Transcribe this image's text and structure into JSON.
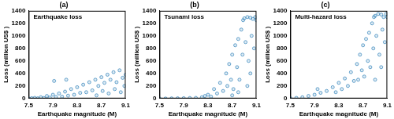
{
  "chart_data": [
    {
      "type": "scatter",
      "title": "(a)",
      "subtitle": "Earthquake loss",
      "x_label": "Earthquake magnitude (M)",
      "y_label": "Loss (million US$ )",
      "color": "#1f77b4",
      "marker": "circle",
      "grid": false,
      "xlim": [
        7.5,
        9.1
      ],
      "xticks": [
        7.5,
        7.9,
        8.3,
        8.7,
        9.1
      ],
      "ylim": [
        0,
        1400
      ],
      "yticks": [
        0,
        200,
        400,
        600,
        800,
        1000,
        1200,
        1400
      ],
      "x": [
        7.5,
        7.55,
        7.6,
        7.65,
        7.7,
        7.75,
        7.8,
        7.85,
        7.9,
        7.92,
        7.95,
        8.0,
        8.05,
        8.1,
        8.12,
        8.15,
        8.2,
        8.25,
        8.3,
        8.35,
        8.4,
        8.45,
        8.5,
        8.55,
        8.6,
        8.62,
        8.65,
        8.7,
        8.72,
        8.75,
        8.8,
        8.82,
        8.85,
        8.9,
        8.92,
        8.95,
        9.0,
        9.02,
        9.05,
        9.08,
        9.1
      ],
      "values": [
        0,
        5,
        10,
        3,
        20,
        8,
        40,
        15,
        60,
        280,
        25,
        80,
        30,
        110,
        300,
        45,
        150,
        60,
        180,
        90,
        220,
        100,
        260,
        130,
        300,
        50,
        200,
        340,
        120,
        250,
        380,
        80,
        300,
        420,
        150,
        260,
        450,
        100,
        330,
        200,
        380
      ]
    },
    {
      "type": "scatter",
      "title": "(b)",
      "subtitle": "Tsunami loss",
      "x_label": "Earthquake magnitude (M)",
      "y_label": "Loss (million US$ )",
      "color": "#1f77b4",
      "marker": "circle",
      "grid": false,
      "xlim": [
        7.5,
        9.1
      ],
      "xticks": [
        7.5,
        7.9,
        8.3,
        8.7,
        9.1
      ],
      "ylim": [
        0,
        1400
      ],
      "yticks": [
        0,
        200,
        400,
        600,
        800,
        1000,
        1200,
        1400
      ],
      "x": [
        7.5,
        7.6,
        7.7,
        7.8,
        7.9,
        8.0,
        8.1,
        8.2,
        8.25,
        8.3,
        8.35,
        8.4,
        8.45,
        8.5,
        8.55,
        8.6,
        8.62,
        8.65,
        8.68,
        8.7,
        8.7,
        8.72,
        8.75,
        8.78,
        8.8,
        8.8,
        8.82,
        8.85,
        8.87,
        8.88,
        8.9,
        8.92,
        8.95,
        8.95,
        8.97,
        9.0,
        9.0,
        9.02,
        9.04,
        9.06,
        9.08,
        9.1
      ],
      "values": [
        0,
        0,
        2,
        3,
        5,
        8,
        10,
        20,
        40,
        60,
        30,
        150,
        80,
        250,
        120,
        400,
        200,
        550,
        300,
        700,
        50,
        150,
        850,
        500,
        950,
        100,
        300,
        1100,
        700,
        1250,
        1280,
        900,
        1300,
        200,
        600,
        1290,
        400,
        1000,
        1270,
        800,
        1300,
        1250
      ]
    },
    {
      "type": "scatter",
      "title": "(c)",
      "subtitle": "Multi-hazard loss",
      "x_label": "Earthquake magnitude (M)",
      "y_label": "Loss (million US$ )",
      "color": "#1f77b4",
      "marker": "circle",
      "grid": false,
      "xlim": [
        7.5,
        9.1
      ],
      "xticks": [
        7.5,
        7.9,
        8.3,
        8.7,
        9.1
      ],
      "ylim": [
        0,
        1400
      ],
      "yticks": [
        0,
        200,
        400,
        600,
        800,
        1000,
        1200,
        1400
      ],
      "x": [
        7.5,
        7.6,
        7.7,
        7.8,
        7.9,
        7.95,
        8.0,
        8.1,
        8.2,
        8.25,
        8.3,
        8.35,
        8.4,
        8.45,
        8.5,
        8.55,
        8.6,
        8.62,
        8.65,
        8.68,
        8.7,
        8.72,
        8.75,
        8.78,
        8.8,
        8.82,
        8.85,
        8.87,
        8.88,
        8.9,
        8.9,
        8.92,
        8.95,
        8.97,
        9.0,
        9.0,
        9.02,
        9.04,
        9.06,
        9.08,
        9.1
      ],
      "values": [
        5,
        10,
        20,
        40,
        60,
        150,
        90,
        120,
        180,
        100,
        250,
        150,
        320,
        200,
        420,
        280,
        550,
        300,
        700,
        450,
        850,
        350,
        950,
        600,
        1050,
        500,
        1200,
        800,
        1300,
        1320,
        300,
        1000,
        1350,
        700,
        1340,
        500,
        1100,
        1300,
        900,
        1350,
        1300
      ]
    }
  ]
}
